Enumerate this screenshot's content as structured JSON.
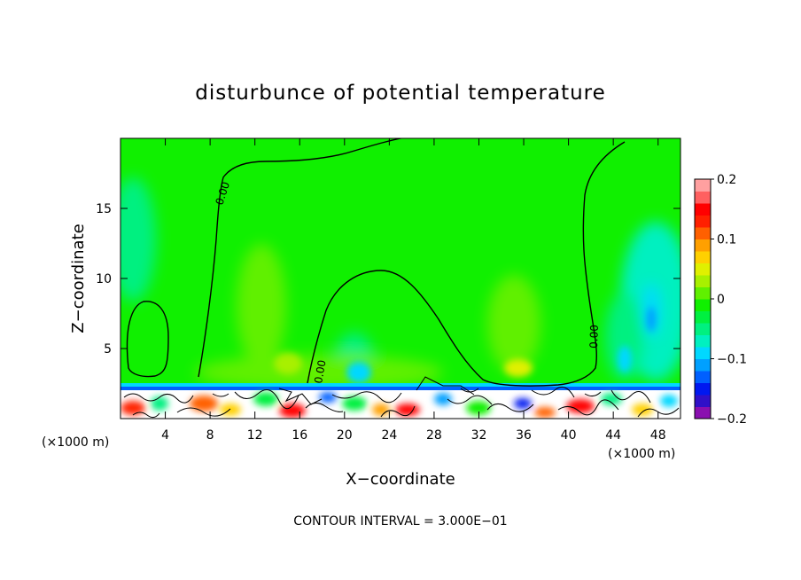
{
  "chart_data": {
    "type": "heatmap",
    "title": "disturbunce of potential temperature",
    "xlabel": "X−coordinate",
    "ylabel": "Z−coordinate",
    "x_unit_left": "(×1000 m)",
    "x_unit_right": "(×1000 m)",
    "xlim": [
      0,
      50
    ],
    "ylim": [
      0,
      20
    ],
    "x_ticks": [
      4,
      8,
      12,
      16,
      20,
      24,
      28,
      32,
      36,
      40,
      44,
      48
    ],
    "x_tick_labels": [
      "4",
      "8",
      "12",
      "16",
      "20",
      "24",
      "28",
      "32",
      "36",
      "40",
      "44",
      "48"
    ],
    "y_ticks": [
      5,
      10,
      15
    ],
    "y_tick_labels": [
      "5",
      "10",
      "15"
    ],
    "contour_labels": [
      "0.00",
      "0.00",
      "0.00"
    ],
    "colorbar": {
      "range": [
        -0.2,
        0.2
      ],
      "tick_values": [
        0.2,
        0.1,
        0,
        -0.1,
        -0.2
      ],
      "tick_labels": [
        "0.2",
        "0.1",
        "0",
        "−0.1",
        "−0.2"
      ],
      "colors": [
        "#8a0fb0",
        "#3010c8",
        "#0018f0",
        "#0060ff",
        "#00a0ff",
        "#00d8ff",
        "#00f0c0",
        "#00f080",
        "#00f040",
        "#10f000",
        "#60f000",
        "#a8f000",
        "#e0f000",
        "#ffd000",
        "#ffa000",
        "#ff6000",
        "#ff2000",
        "#ff0000",
        "#ff6060",
        "#ffa0a0"
      ]
    },
    "footnote": "CONTOUR INTERVAL = 3.000E−01"
  }
}
